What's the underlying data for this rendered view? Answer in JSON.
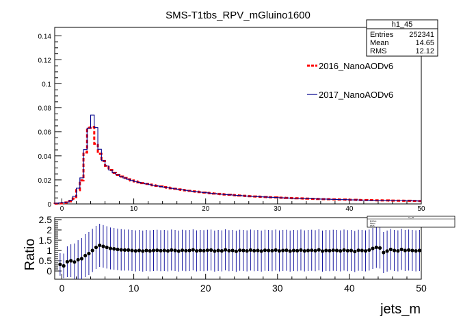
{
  "title": "SMS-T1tbs_RPV_mGluino1600",
  "stats_box": {
    "name": "h1_45",
    "rows": [
      {
        "label": "Entries",
        "value": "252341"
      },
      {
        "label": "Mean",
        "value": "14.65"
      },
      {
        "label": "RMS",
        "value": "12.12"
      }
    ]
  },
  "legend": [
    {
      "name": "2016_NanoAODv6",
      "color": "#ff0000",
      "style": "dashed"
    },
    {
      "name": "2017_NanoAODv6",
      "color": "#00008b",
      "style": "step"
    }
  ],
  "chart_data": [
    {
      "type": "line",
      "title": "SMS-T1tbs_RPV_mGluino1600",
      "xlabel": "",
      "ylabel": "",
      "xlim": [
        -1,
        50
      ],
      "ylim": [
        0,
        0.147
      ],
      "xticks": [
        "0",
        "10",
        "20",
        "30",
        "40",
        "50"
      ],
      "yticks": [
        "0",
        "0.02",
        "0.04",
        "0.06",
        "0.08",
        "0.1",
        "0.12",
        "0.14"
      ],
      "x": [
        -0.75,
        -0.25,
        0.25,
        0.75,
        1.25,
        1.75,
        2.25,
        2.75,
        3.25,
        3.75,
        4.25,
        4.75,
        5.25,
        5.75,
        6.25,
        6.75,
        7.25,
        7.75,
        8.25,
        8.75,
        9.25,
        9.75,
        10.25,
        10.75,
        11.25,
        11.75,
        12.25,
        12.75,
        13.25,
        13.75,
        14.25,
        14.75,
        15.25,
        15.75,
        16.25,
        16.75,
        17.25,
        17.75,
        18.25,
        18.75,
        19.25,
        19.75,
        20.25,
        20.75,
        21.25,
        21.75,
        22.25,
        22.75,
        23.25,
        23.75,
        24.25,
        24.75,
        25.25,
        25.75,
        26.25,
        26.75,
        27.25,
        27.75,
        28.25,
        28.75,
        29.25,
        29.75,
        30.25,
        30.75,
        31.25,
        31.75,
        32.25,
        32.75,
        33.25,
        33.75,
        34.25,
        34.75,
        35.25,
        35.75,
        36.25,
        36.75,
        37.25,
        37.75,
        38.25,
        38.75,
        39.25,
        39.75,
        40.25,
        40.75,
        41.25,
        41.75,
        42.25,
        42.75,
        43.25,
        43.75,
        44.25,
        44.75,
        45.25,
        45.75,
        46.25,
        46.75,
        47.25,
        47.75,
        48.25,
        48.75,
        49.25,
        49.75
      ],
      "series": [
        {
          "name": "2016_NanoAODv6",
          "values": [
            0.0003,
            0.0005,
            0.0008,
            0.0012,
            0.0022,
            0.0045,
            0.0115,
            0.0196,
            0.0428,
            0.0634,
            0.064,
            0.05,
            0.0418,
            0.0357,
            0.0317,
            0.0282,
            0.0259,
            0.0242,
            0.0228,
            0.0216,
            0.0205,
            0.0195,
            0.0187,
            0.018,
            0.0173,
            0.0167,
            0.0161,
            0.0155,
            0.015,
            0.0145,
            0.014,
            0.0135,
            0.013,
            0.0126,
            0.0121,
            0.0117,
            0.0113,
            0.0109,
            0.0105,
            0.0102,
            0.0098,
            0.0095,
            0.0092,
            0.0089,
            0.0086,
            0.0083,
            0.0081,
            0.0078,
            0.0076,
            0.0074,
            0.0072,
            0.007,
            0.0068,
            0.0066,
            0.0064,
            0.0062,
            0.0061,
            0.0059,
            0.0058,
            0.0056,
            0.0055,
            0.0054,
            0.0052,
            0.0051,
            0.005,
            0.0049,
            0.0048,
            0.0047,
            0.0046,
            0.0045,
            0.0044,
            0.0043,
            0.0042,
            0.0041,
            0.004,
            0.004,
            0.0039,
            0.0038,
            0.0037,
            0.0036,
            0.0036,
            0.0035,
            0.0034,
            0.0034,
            0.0033,
            0.0032,
            0.0032,
            0.0031,
            0.0031,
            0.003,
            0.003,
            0.0029,
            0.0029,
            0.0028,
            0.0028,
            0.0027,
            0.0027,
            0.0026,
            0.0026,
            0.0025,
            0.0025,
            0.0024
          ]
        },
        {
          "name": "2017_NanoAODv6",
          "values": [
            0.0006,
            0.0009,
            0.0011,
            0.0015,
            0.003,
            0.0063,
            0.0131,
            0.0217,
            0.0452,
            0.0631,
            0.074,
            0.0635,
            0.0455,
            0.036,
            0.0317,
            0.0282,
            0.0259,
            0.0242,
            0.0228,
            0.0216,
            0.0205,
            0.0195,
            0.0187,
            0.018,
            0.0173,
            0.0167,
            0.0161,
            0.0155,
            0.015,
            0.0145,
            0.014,
            0.0135,
            0.013,
            0.0126,
            0.0121,
            0.0117,
            0.0113,
            0.0109,
            0.0105,
            0.0102,
            0.0098,
            0.0095,
            0.0092,
            0.0089,
            0.0086,
            0.0083,
            0.0081,
            0.0078,
            0.0076,
            0.0074,
            0.0072,
            0.007,
            0.0068,
            0.0066,
            0.0064,
            0.0062,
            0.0061,
            0.0059,
            0.0058,
            0.0056,
            0.0055,
            0.0054,
            0.0052,
            0.0051,
            0.005,
            0.0049,
            0.0048,
            0.0047,
            0.0046,
            0.0045,
            0.0044,
            0.0043,
            0.0042,
            0.0041,
            0.004,
            0.004,
            0.0039,
            0.0038,
            0.0037,
            0.0036,
            0.0036,
            0.0035,
            0.0034,
            0.0034,
            0.0033,
            0.0032,
            0.0032,
            0.0031,
            0.0031,
            0.003,
            0.003,
            0.0029,
            0.0029,
            0.0028,
            0.0028,
            0.0027,
            0.0027,
            0.0026,
            0.0026,
            0.0025,
            0.0025,
            0.0024
          ]
        }
      ]
    },
    {
      "type": "scatter",
      "xlabel": "jets_m",
      "ylabel": "Ratio",
      "xlim": [
        -1,
        50
      ],
      "ylim": [
        -0.4,
        2.6
      ],
      "xticks": [
        "0",
        "10",
        "20",
        "30",
        "40",
        "50"
      ],
      "yticks": [
        "0",
        "0.5",
        "1",
        "1.5",
        "2",
        "2.5"
      ],
      "x": [
        -0.25,
        0.25,
        0.75,
        1.25,
        1.75,
        2.25,
        2.75,
        3.25,
        3.75,
        4.25,
        4.75,
        5.25,
        5.75,
        6.25,
        6.75,
        7.25,
        7.75,
        8.25,
        8.75,
        9.25,
        9.75,
        10.25,
        10.75,
        11.25,
        11.75,
        12.25,
        12.75,
        13.25,
        13.75,
        14.25,
        14.75,
        15.25,
        15.75,
        16.25,
        16.75,
        17.25,
        17.75,
        18.25,
        18.75,
        19.25,
        19.75,
        20.25,
        20.75,
        21.25,
        21.75,
        22.25,
        22.75,
        23.25,
        23.75,
        24.25,
        24.75,
        25.25,
        25.75,
        26.25,
        26.75,
        27.25,
        27.75,
        28.25,
        28.75,
        29.25,
        29.75,
        30.25,
        30.75,
        31.25,
        31.75,
        32.25,
        32.75,
        33.25,
        33.75,
        34.25,
        34.75,
        35.25,
        35.75,
        36.25,
        36.75,
        37.25,
        37.75,
        38.25,
        38.75,
        39.25,
        39.75,
        40.25,
        40.75,
        41.25,
        41.75,
        42.25,
        42.75,
        43.25,
        43.75,
        44.25,
        44.75,
        45.25,
        45.75,
        46.25,
        46.75,
        47.25,
        47.75,
        48.25,
        48.75,
        49.25,
        49.75
      ],
      "series": [
        {
          "name": "",
          "values": [
            0.32,
            0.25,
            0.45,
            0.5,
            0.44,
            0.55,
            0.6,
            0.75,
            0.85,
            1.0,
            1.15,
            1.25,
            1.2,
            1.15,
            1.1,
            1.08,
            1.05,
            1.03,
            1.02,
            1.02,
            1.0,
            0.98,
            1.0,
            0.97,
            1.0,
            0.98,
            1.0,
            1.01,
            0.99,
            1.0,
            0.98,
            1.02,
            1.0,
            0.97,
            1.01,
            0.99,
            1.0,
            1.03,
            0.98,
            1.0,
            0.99,
            1.01,
            1.02,
            0.97,
            1.0,
            0.98,
            1.03,
            0.99,
            1.0,
            0.96,
            1.01,
            1.0,
            0.98,
            1.02,
            0.99,
            1.0,
            0.97,
            1.01,
            1.0,
            0.99,
            1.02,
            0.98,
            1.0,
            1.01,
            0.97,
            1.0,
            0.99,
            1.02,
            0.98,
            1.0,
            1.01,
            0.99,
            1.03,
            0.97,
            1.0,
            0.99,
            1.01,
            1.0,
            0.98,
            1.02,
            0.99,
            1.0,
            0.95,
            1.01,
            1.0,
            0.98,
            1.02,
            1.1,
            1.15,
            1.12,
            0.9,
            0.97,
            1.05,
            1.0,
            0.98,
            1.05,
            1.0,
            1.02,
            1.0,
            0.98,
            1.0
          ],
          "errors": [
            0.55,
            0.6,
            0.75,
            0.8,
            0.9,
            0.95,
            1.0,
            1.05,
            1.05,
            1.05,
            1.05,
            1.05,
            1.04,
            1.03,
            1.02,
            1.02,
            1.01,
            1.01,
            1.0,
            1.0,
            1.0,
            1.0,
            1.0,
            1.0,
            1.0,
            1.0,
            1.0,
            1.0,
            1.0,
            1.0,
            1.0,
            1.0,
            1.0,
            1.0,
            1.0,
            1.0,
            1.0,
            1.0,
            1.0,
            1.0,
            1.0,
            1.0,
            1.0,
            1.0,
            1.0,
            1.0,
            1.0,
            1.0,
            1.0,
            1.0,
            1.0,
            1.0,
            1.0,
            1.0,
            1.0,
            1.0,
            1.0,
            1.0,
            1.0,
            1.0,
            1.0,
            1.0,
            1.0,
            1.0,
            1.0,
            1.0,
            1.0,
            1.0,
            1.0,
            1.0,
            1.0,
            1.0,
            1.0,
            1.0,
            1.0,
            1.0,
            1.0,
            1.0,
            1.0,
            1.0,
            1.0,
            1.0,
            1.0,
            1.0,
            1.0,
            1.0,
            1.0,
            1.0,
            1.0,
            1.0,
            1.0,
            1.0,
            1.0,
            1.0,
            1.0,
            1.0,
            1.0,
            1.0,
            1.0,
            1.0,
            1.0
          ]
        }
      ]
    }
  ]
}
